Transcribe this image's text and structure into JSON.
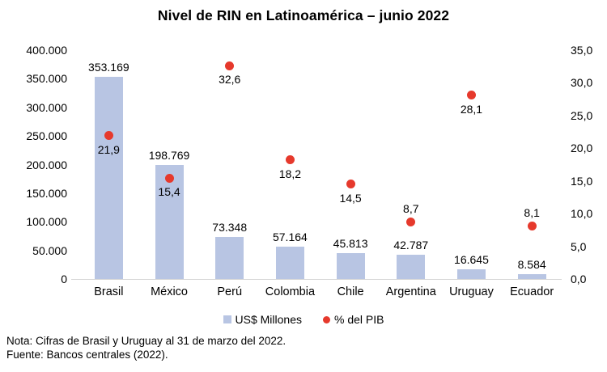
{
  "title": "Nivel de RIN en Latinoamérica – junio 2022",
  "chart_data": {
    "type": "combo",
    "title": "Nivel de RIN en Latinoamérica – junio 2022",
    "categories": [
      "Brasil",
      "México",
      "Perú",
      "Colombia",
      "Chile",
      "Argentina",
      "Uruguay",
      "Ecuador"
    ],
    "series": [
      {
        "name": "US$ Millones",
        "type": "bar",
        "axis": "left",
        "color": "#b8c5e3",
        "values": [
          353169,
          198769,
          73348,
          57164,
          45813,
          42787,
          16645,
          8584
        ],
        "labels": [
          "353.169",
          "198.769",
          "73.348",
          "57.164",
          "45.813",
          "42.787",
          "16.645",
          "8.584"
        ]
      },
      {
        "name": "% del PIB",
        "type": "scatter",
        "axis": "right",
        "color": "#e6392c",
        "values": [
          21.9,
          15.4,
          32.6,
          18.2,
          14.5,
          8.7,
          28.1,
          8.1
        ],
        "labels": [
          "21,9",
          "15,4",
          "32,6",
          "18,2",
          "14,5",
          "8,7",
          "28,1",
          "8,1"
        ],
        "label_positions": [
          "below",
          "below",
          "below",
          "below",
          "below",
          "above",
          "below",
          "above"
        ]
      }
    ],
    "left_axis": {
      "min": 0,
      "max": 400000,
      "ticks": [
        "400.000",
        "350.000",
        "300.000",
        "250.000",
        "200.000",
        "150.000",
        "100.000",
        "50.000",
        "0"
      ]
    },
    "right_axis": {
      "min": 0,
      "max": 35,
      "ticks": [
        "35,0",
        "30,0",
        "25,0",
        "20,0",
        "15,0",
        "10,0",
        "5,0",
        "0,0"
      ]
    },
    "grid": false,
    "legend_position": "bottom"
  },
  "legend": [
    {
      "label": "US$ Millones",
      "swatch": "square",
      "color": "#b8c5e3"
    },
    {
      "label": "% del PIB",
      "swatch": "dot",
      "color": "#e6392c"
    }
  ],
  "notes": {
    "note": "Nota: Cifras de Brasil y Uruguay al 31 de marzo del 2022.",
    "source": "Fuente: Bancos centrales (2022)."
  }
}
